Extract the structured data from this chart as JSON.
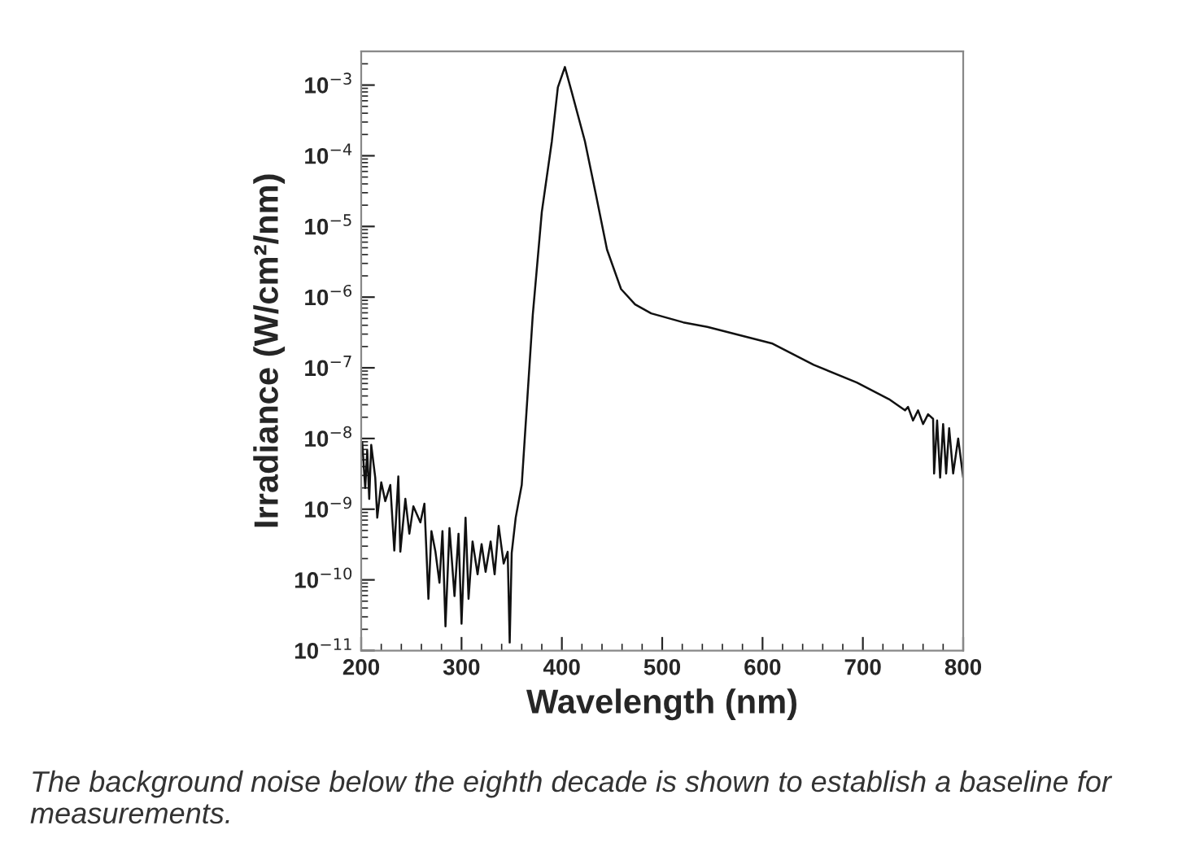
{
  "chart_data": {
    "type": "line",
    "xlabel": "Wavelength (nm)",
    "ylabel": "Irradiance (W/cm²/nm)",
    "log": "y",
    "grid": false,
    "legend": false,
    "marker": "none",
    "line_style": "solid",
    "xlim": [
      200,
      800
    ],
    "xticks": [
      200,
      300,
      400,
      500,
      600,
      700,
      800
    ],
    "ylim": [
      1e-11,
      0.003
    ],
    "yticks": [
      {
        "value": 1e-11,
        "label": "10$^{−11}$"
      },
      {
        "value": 1e-10,
        "label": "10$^{−10}$"
      },
      {
        "value": 1e-09,
        "label": "10$^{−9}$"
      },
      {
        "value": 1e-08,
        "label": "10$^{−8}$"
      },
      {
        "value": 1e-07,
        "label": "10$^{−7}$"
      },
      {
        "value": 1e-06,
        "label": "10$^{−6}$"
      },
      {
        "value": 1e-05,
        "label": "10$^{−5}$"
      },
      {
        "value": 0.0001,
        "label": "10$^{−4}$"
      },
      {
        "value": 0.001,
        "label": "10$^{−3}$"
      }
    ],
    "series": [
      {
        "color": "#111111",
        "x": [
          201,
          204,
          206,
          208,
          210,
          214,
          216,
          220,
          224,
          229,
          233,
          237,
          239,
          244,
          248,
          252,
          259,
          263,
          267,
          270,
          274,
          278,
          281,
          284,
          288,
          293,
          297,
          300,
          304,
          307,
          311,
          316,
          320,
          324,
          329,
          333,
          337,
          342,
          346,
          348,
          350,
          354,
          357,
          360,
          363,
          371,
          380,
          390,
          396,
          403,
          410,
          423,
          434,
          445,
          459,
          473,
          489,
          521,
          545,
          610,
          651,
          694,
          726,
          742,
          745,
          750,
          755,
          760,
          765,
          770,
          771,
          774,
          777,
          780,
          783,
          786,
          790,
          795,
          800
        ],
        "values": [
          8.9e-09,
          2e-09,
          6.8e-09,
          1.4e-09,
          8.1e-09,
          2.8e-09,
          7.6e-10,
          2.4e-09,
          1.3e-09,
          2.2e-09,
          2.6e-10,
          2.9e-09,
          2.5e-10,
          1.4e-09,
          4.5e-10,
          1.1e-09,
          6.5e-10,
          1.2e-09,
          5.4e-11,
          4.9e-10,
          2.5e-10,
          9.1e-11,
          4.9e-10,
          2.2e-11,
          5.4e-10,
          5.9e-11,
          4.5e-10,
          2.4e-11,
          7.6e-10,
          5.4e-11,
          3.5e-10,
          1.2e-10,
          3.2e-10,
          1.3e-10,
          3.5e-10,
          1.2e-10,
          5.8e-10,
          1.7e-10,
          2.5e-10,
          1.3e-11,
          2.4e-10,
          7.6e-10,
          1.3e-09,
          2.2e-09,
          1e-08,
          5.6e-07,
          1.6e-05,
          0.00016,
          0.00093,
          0.0018,
          0.00078,
          0.00016,
          2.8e-05,
          4.7e-06,
          1.3e-06,
          7.9e-07,
          5.9e-07,
          4.4e-07,
          3.8e-07,
          2.2e-07,
          1.1e-07,
          6.2e-08,
          3.6e-08,
          2.5e-08,
          2.8e-08,
          1.8e-08,
          2.5e-08,
          1.6e-08,
          2.2e-08,
          1.9e-08,
          3.2e-09,
          1.8e-08,
          2.8e-09,
          1.6e-08,
          3.2e-09,
          1.4e-08,
          3.2e-09,
          1e-08,
          2.8e-09
        ]
      }
    ],
    "annotations": [
      "The background noise below the eighth decade is shown to establish a baseline for measurements."
    ]
  }
}
